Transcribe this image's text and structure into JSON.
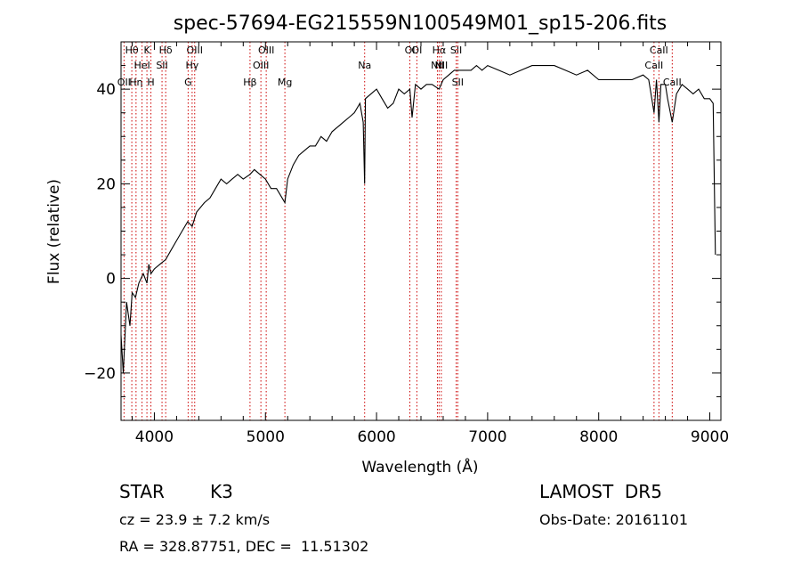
{
  "chart_data": {
    "type": "line",
    "title": "spec-57694-EG215559N100549M01_sp15-206.fits",
    "xlabel": "Wavelength (Å)",
    "ylabel": "Flux (relative)",
    "xlim": [
      3700,
      9100
    ],
    "ylim": [
      -30,
      50
    ],
    "x_ticks": [
      4000,
      5000,
      6000,
      7000,
      8000,
      9000
    ],
    "y_ticks": [
      -20,
      0,
      20,
      40
    ],
    "grid": false,
    "series": [
      {
        "x": [
          3700,
          3720,
          3750,
          3780,
          3800,
          3830,
          3860,
          3900,
          3933,
          3950,
          3969,
          4000,
          4050,
          4102,
          4150,
          4200,
          4250,
          4300,
          4340,
          4380,
          4450,
          4500,
          4550,
          4600,
          4650,
          4700,
          4750,
          4800,
          4861,
          4900,
          4950,
          5000,
          5050,
          5100,
          5150,
          5175,
          5200,
          5250,
          5300,
          5350,
          5400,
          5450,
          5500,
          5550,
          5600,
          5650,
          5700,
          5750,
          5800,
          5850,
          5880,
          5893,
          5900,
          5950,
          6000,
          6050,
          6100,
          6150,
          6200,
          6250,
          6300,
          6320,
          6350,
          6400,
          6450,
          6500,
          6563,
          6600,
          6650,
          6700,
          6750,
          6800,
          6850,
          6900,
          6950,
          7000,
          7100,
          7200,
          7300,
          7400,
          7500,
          7600,
          7700,
          7800,
          7900,
          8000,
          8100,
          8200,
          8300,
          8400,
          8450,
          8498,
          8520,
          8542,
          8560,
          8600,
          8620,
          8662,
          8700,
          8750,
          8800,
          8850,
          8900,
          8950,
          9000,
          9030,
          9050
        ],
        "y": [
          -12,
          -20,
          -5,
          -10,
          -3,
          -4,
          -1,
          1,
          -1,
          3,
          1,
          2,
          3,
          4,
          6,
          8,
          10,
          12,
          11,
          14,
          16,
          17,
          19,
          21,
          20,
          21,
          22,
          21,
          22,
          23,
          22,
          21,
          19,
          19,
          17,
          16,
          21,
          24,
          26,
          27,
          28,
          28,
          30,
          29,
          31,
          32,
          33,
          34,
          35,
          37,
          33,
          20,
          38,
          39,
          40,
          38,
          36,
          37,
          40,
          39,
          40,
          34,
          41,
          40,
          41,
          41,
          40,
          42,
          43,
          44,
          44,
          44,
          44,
          45,
          44,
          45,
          44,
          43,
          44,
          45,
          45,
          45,
          44,
          43,
          44,
          42,
          42,
          42,
          42,
          43,
          42,
          35,
          42,
          33,
          41,
          41,
          38,
          33,
          39,
          41,
          40,
          39,
          40,
          38,
          38,
          37,
          5
        ]
      }
    ],
    "line_marks": [
      {
        "label": "OII",
        "x": 3727,
        "row": 2
      },
      {
        "label": "Hθ",
        "x": 3797,
        "row": 0
      },
      {
        "label": "Hη",
        "x": 3835,
        "row": 2
      },
      {
        "label": "HeI",
        "x": 3889,
        "row": 1
      },
      {
        "label": "K",
        "x": 3933,
        "row": 0
      },
      {
        "label": "H",
        "x": 3969,
        "row": 2
      },
      {
        "label": "Hδ",
        "x": 4102,
        "row": 0
      },
      {
        "label": "SII",
        "x": 4069,
        "row": 1
      },
      {
        "label": "OIII",
        "x": 4363,
        "row": 0
      },
      {
        "label": "Hγ",
        "x": 4340,
        "row": 1
      },
      {
        "label": "G",
        "x": 4304,
        "row": 2
      },
      {
        "label": "Hβ",
        "x": 4861,
        "row": 2
      },
      {
        "label": "OIII",
        "x": 5007,
        "row": 0
      },
      {
        "label": "OIII",
        "x": 4959,
        "row": 1
      },
      {
        "label": "Mg",
        "x": 5175,
        "row": 2
      },
      {
        "label": "Na",
        "x": 5893,
        "row": 1
      },
      {
        "label": "OI",
        "x": 6300,
        "row": 0
      },
      {
        "label": "OI",
        "x": 6363,
        "row": 0
      },
      {
        "label": "Hα",
        "x": 6563,
        "row": 0
      },
      {
        "label": "NII",
        "x": 6548,
        "row": 1
      },
      {
        "label": "NII",
        "x": 6583,
        "row": 1
      },
      {
        "label": "SII",
        "x": 6717,
        "row": 0
      },
      {
        "label": "SII",
        "x": 6731,
        "row": 2
      },
      {
        "label": "CaII",
        "x": 8542,
        "row": 0
      },
      {
        "label": "CaII",
        "x": 8498,
        "row": 1
      },
      {
        "label": "CaII",
        "x": 8662,
        "row": 2
      }
    ]
  },
  "info": {
    "object_class": "STAR",
    "subclass": "K3",
    "survey": "LAMOST  DR5",
    "redshift": "cz = 23.9 ± 7.2 km/s",
    "obs_date": "Obs-Date: 20161101",
    "coords": "RA = 328.87751, DEC =  11.51302"
  }
}
